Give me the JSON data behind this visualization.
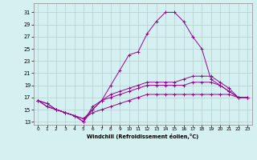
{
  "xlabel": "Windchill (Refroidissement éolien,°C)",
  "ylabel": "",
  "background_color": "#d4f0f0",
  "line_color": "#990099",
  "grid_color": "#b0c8c8",
  "xlim": [
    -0.5,
    23.5
  ],
  "ylim": [
    12.5,
    32.5
  ],
  "xticks": [
    0,
    1,
    2,
    3,
    4,
    5,
    6,
    7,
    8,
    9,
    10,
    11,
    12,
    13,
    14,
    15,
    16,
    17,
    18,
    19,
    20,
    21,
    22,
    23
  ],
  "yticks": [
    13,
    15,
    17,
    19,
    21,
    23,
    25,
    27,
    29,
    31
  ],
  "series": [
    {
      "x": [
        0,
        1,
        2,
        3,
        4,
        5,
        6,
        7,
        8,
        9,
        10,
        11,
        12,
        13,
        14,
        15,
        16,
        17,
        18,
        19,
        20,
        21,
        22,
        23
      ],
      "y": [
        16.5,
        16.0,
        15.0,
        14.5,
        14.0,
        13.0,
        15.0,
        16.5,
        19.0,
        21.5,
        24.0,
        24.5,
        27.5,
        29.5,
        31.0,
        31.0,
        29.5,
        27.0,
        25.0,
        20.0,
        19.0,
        18.0,
        17.0,
        17.0
      ]
    },
    {
      "x": [
        0,
        1,
        2,
        3,
        4,
        5,
        6,
        7,
        8,
        9,
        10,
        11,
        12,
        13,
        14,
        15,
        16,
        17,
        18,
        19,
        20,
        21,
        22,
        23
      ],
      "y": [
        16.5,
        16.0,
        15.0,
        14.5,
        14.0,
        13.0,
        15.5,
        16.5,
        17.5,
        18.0,
        18.5,
        19.0,
        19.5,
        19.5,
        19.5,
        19.5,
        20.0,
        20.5,
        20.5,
        20.5,
        19.5,
        18.5,
        17.0,
        17.0
      ]
    },
    {
      "x": [
        0,
        1,
        2,
        3,
        4,
        5,
        6,
        7,
        8,
        9,
        10,
        11,
        12,
        13,
        14,
        15,
        16,
        17,
        18,
        19,
        20,
        21,
        22,
        23
      ],
      "y": [
        16.5,
        15.5,
        15.0,
        14.5,
        14.0,
        13.5,
        15.0,
        16.5,
        17.0,
        17.5,
        18.0,
        18.5,
        19.0,
        19.0,
        19.0,
        19.0,
        19.0,
        19.5,
        19.5,
        19.5,
        19.0,
        18.0,
        17.0,
        17.0
      ]
    },
    {
      "x": [
        0,
        1,
        2,
        3,
        4,
        5,
        6,
        7,
        8,
        9,
        10,
        11,
        12,
        13,
        14,
        15,
        16,
        17,
        18,
        19,
        20,
        21,
        22,
        23
      ],
      "y": [
        16.5,
        15.5,
        15.0,
        14.5,
        14.0,
        13.5,
        14.5,
        15.0,
        15.5,
        16.0,
        16.5,
        17.0,
        17.5,
        17.5,
        17.5,
        17.5,
        17.5,
        17.5,
        17.5,
        17.5,
        17.5,
        17.5,
        17.0,
        17.0
      ]
    }
  ]
}
